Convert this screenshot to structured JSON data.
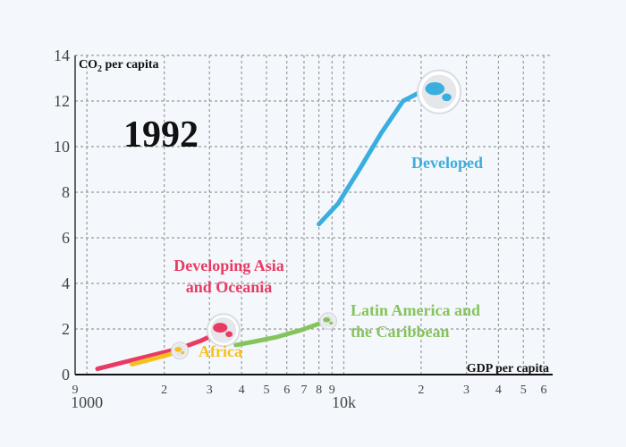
{
  "chart_data": {
    "type": "line",
    "year_label": "1992",
    "xlabel": "GDP per capita",
    "ylabel_main": "CO",
    "ylabel_sub": "2",
    "ylabel_rest": " per capita",
    "x_scale": "log",
    "xlim": [
      900,
      65000
    ],
    "ylim": [
      0,
      14
    ],
    "y_ticks": [
      "0",
      "2",
      "4",
      "6",
      "8",
      "10",
      "12",
      "14"
    ],
    "x_ticks": [
      {
        "value": 900,
        "label": "9",
        "major": false
      },
      {
        "value": 1000,
        "label": "1000",
        "major": true
      },
      {
        "value": 2000,
        "label": "2",
        "major": false
      },
      {
        "value": 3000,
        "label": "3",
        "major": false
      },
      {
        "value": 4000,
        "label": "4",
        "major": false
      },
      {
        "value": 5000,
        "label": "5",
        "major": false
      },
      {
        "value": 6000,
        "label": "6",
        "major": false
      },
      {
        "value": 7000,
        "label": "7",
        "major": false
      },
      {
        "value": 8000,
        "label": "8",
        "major": false
      },
      {
        "value": 9000,
        "label": "9",
        "major": false
      },
      {
        "value": 10000,
        "label": "10k",
        "major": true
      },
      {
        "value": 20000,
        "label": "2",
        "major": false
      },
      {
        "value": 30000,
        "label": "3",
        "major": false
      },
      {
        "value": 40000,
        "label": "4",
        "major": false
      },
      {
        "value": 50000,
        "label": "5",
        "major": false
      },
      {
        "value": 60000,
        "label": "6",
        "major": false
      }
    ],
    "grid": true,
    "series": [
      {
        "name_lines": [
          "Developed"
        ],
        "color": "#3aaede",
        "icon": "globe-developed-icon",
        "x": [
          8000,
          9500,
          11500,
          14000,
          17000,
          19500,
          21000,
          23500
        ],
        "y": [
          6.6,
          7.5,
          9.0,
          10.6,
          12.0,
          12.35,
          12.35,
          12.4
        ]
      },
      {
        "name_lines": [
          "Developing Asia",
          "and Oceania"
        ],
        "color": "#e83a62",
        "icon": "globe-asia-icon",
        "x": [
          1100,
          1400,
          1800,
          2300,
          2800,
          3400
        ],
        "y": [
          0.25,
          0.55,
          0.85,
          1.15,
          1.5,
          1.95
        ]
      },
      {
        "name_lines": [
          "Latin America and",
          "the Caribbean"
        ],
        "color": "#85c45c",
        "icon": "globe-latin-america-icon",
        "x": [
          3800,
          4500,
          5500,
          6800,
          8100,
          8700
        ],
        "y": [
          1.3,
          1.45,
          1.65,
          1.95,
          2.25,
          2.35
        ]
      },
      {
        "name_lines": [
          "Africa"
        ],
        "color": "#f6c020",
        "icon": "globe-africa-icon",
        "x": [
          1500,
          1750,
          2050,
          2300
        ],
        "y": [
          0.45,
          0.65,
          0.85,
          1.05
        ]
      }
    ]
  }
}
